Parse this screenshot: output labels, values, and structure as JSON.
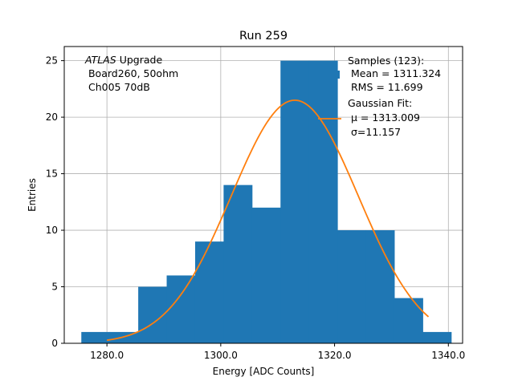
{
  "chart_data": {
    "type": "bar",
    "title": "Run 259",
    "xlabel": "Energy [ADC Counts]",
    "ylabel": "Entries",
    "xlim": [
      1272.5,
      1342.5
    ],
    "ylim": [
      0,
      26.25
    ],
    "grid": true,
    "xticks": [
      1280,
      1300,
      1320,
      1340
    ],
    "xtick_labels": [
      "1280.0",
      "1300.0",
      "1320.0",
      "1340.0"
    ],
    "yticks": [
      0,
      5,
      10,
      15,
      20,
      25
    ],
    "ytick_labels": [
      "0",
      "5",
      "10",
      "15",
      "20",
      "25"
    ],
    "bins": [
      1275.5,
      1280.5,
      1285.5,
      1290.5,
      1295.5,
      1300.5,
      1305.5,
      1310.5,
      1315.5,
      1320.5,
      1325.5,
      1330.5,
      1335.5,
      1340.5
    ],
    "counts": [
      1,
      1,
      5,
      6,
      9,
      14,
      12,
      25,
      25,
      10,
      10,
      4,
      1
    ],
    "hist_color": "#1f77b4",
    "fit": {
      "mu": 1313.009,
      "sigma": 11.157,
      "amplitude": 21.5,
      "x_range": [
        1280,
        1336.5
      ],
      "color": "#ff7f0e"
    },
    "annotation": {
      "italic": "ATLAS",
      "rest": " Upgrade",
      "line2": " Board260, 50ohm",
      "line3": " Ch005 70dB"
    },
    "legend": {
      "position": "top-right",
      "samples_lines": [
        "Samples (123):",
        " Mean = 1311.324",
        " RMS = 11.699"
      ],
      "fit_title": "Gaussian Fit:",
      "fit_mu_label": " μ = 1313.009",
      "fit_sigma_label": " σ=11.157"
    }
  }
}
